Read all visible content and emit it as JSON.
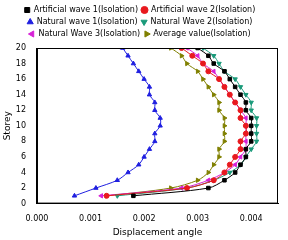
{
  "chart_data": {
    "type": "line",
    "x_label": "Displacement angle",
    "y_label": "Storey",
    "y": [
      1,
      2,
      3,
      4,
      5,
      6,
      7,
      8,
      9,
      10,
      11,
      12,
      13,
      14,
      15,
      16,
      17,
      18,
      19,
      20
    ],
    "series": [
      {
        "name": "Artificial wave 1(Isolation)",
        "color": "#000000",
        "marker": "square",
        "values": [
          0.0018,
          0.0032,
          0.0035,
          0.0037,
          0.0038,
          0.0039,
          0.0039,
          0.004,
          0.004,
          0.004,
          0.004,
          0.0039,
          0.0039,
          0.0038,
          0.0037,
          0.0036,
          0.0035,
          0.0033,
          0.0032,
          0.003
        ]
      },
      {
        "name": "Artificial wave 2(Isolation)",
        "color": "#e8191e",
        "marker": "circle",
        "values": [
          0.0013,
          0.0028,
          0.0033,
          0.0035,
          0.0036,
          0.0037,
          0.0038,
          0.0038,
          0.0039,
          0.0039,
          0.0038,
          0.0038,
          0.0037,
          0.0036,
          0.0035,
          0.0034,
          0.0032,
          0.0031,
          0.0029,
          0.0027
        ]
      },
      {
        "name": "Natural wave 1(Isolation)",
        "color": "#1f1fe0",
        "marker": "triangle",
        "values": [
          0.0007,
          0.0011,
          0.0015,
          0.0017,
          0.0019,
          0.002,
          0.0021,
          0.0022,
          0.0022,
          0.0023,
          0.0023,
          0.0022,
          0.0022,
          0.0021,
          0.0021,
          0.002,
          0.0019,
          0.0018,
          0.0017,
          0.0016
        ]
      },
      {
        "name": "Natural Wave 2(Isolation)",
        "color": "#1a9a7a",
        "marker": "triangle_down",
        "values": [
          0.0015,
          0.0028,
          0.0033,
          0.0036,
          0.0038,
          0.0039,
          0.004,
          0.0041,
          0.0041,
          0.0041,
          0.0041,
          0.004,
          0.004,
          0.0039,
          0.0038,
          0.0037,
          0.0035,
          0.0034,
          0.0033,
          0.0031
        ]
      },
      {
        "name": "Natural Wave 3(Isolation)",
        "color": "#d620d6",
        "marker": "triangle_left",
        "values": [
          0.0012,
          0.0027,
          0.0032,
          0.0035,
          0.0037,
          0.0038,
          0.0039,
          0.0039,
          0.0039,
          0.0039,
          0.0039,
          0.0038,
          0.0037,
          0.0036,
          0.0035,
          0.0034,
          0.0033,
          0.0031,
          0.003,
          0.0028
        ]
      },
      {
        "name": "Average value(Isolation)",
        "color": "#808000",
        "marker": "triangle_right",
        "values": [
          0.0013,
          0.0025,
          0.003,
          0.0032,
          0.0033,
          0.0034,
          0.0034,
          0.0035,
          0.0035,
          0.0035,
          0.0035,
          0.0034,
          0.0034,
          0.0033,
          0.0032,
          0.0031,
          0.003,
          0.0028,
          0.0027,
          0.0025
        ]
      }
    ],
    "xlim": [
      0,
      0.0045
    ],
    "xticks": [
      {
        "value": 0,
        "label": "0.000"
      },
      0.001,
      0.002,
      0.003,
      0.004
    ],
    "ylim": [
      0,
      20
    ],
    "yticks": [
      0,
      2,
      4,
      6,
      8,
      10,
      12,
      14,
      16,
      18,
      20
    ],
    "grid": false,
    "legend": "top"
  }
}
